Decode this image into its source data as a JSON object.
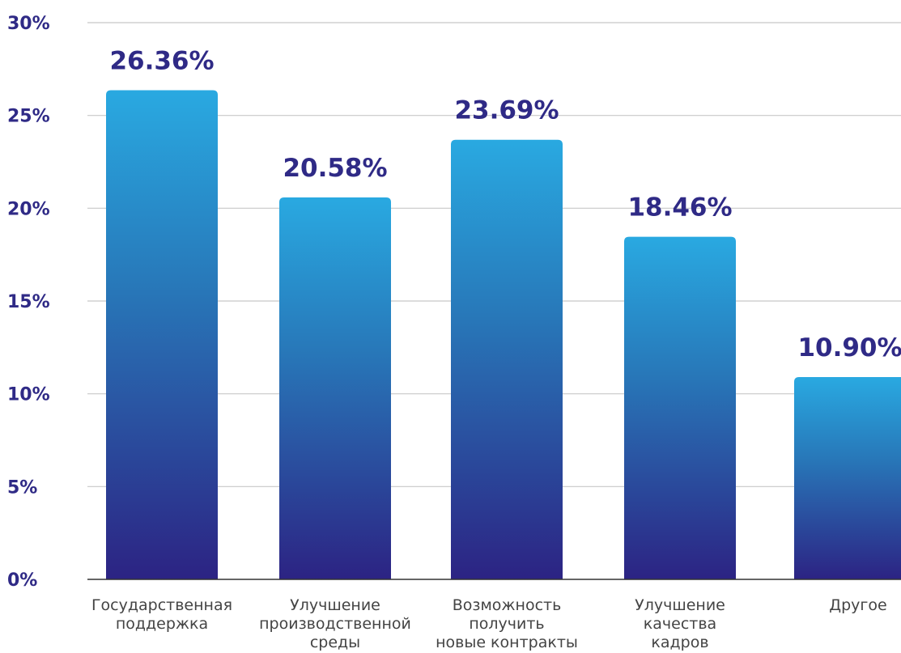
{
  "chart_data": {
    "type": "bar",
    "categories": [
      [
        "Государственная",
        "поддержка"
      ],
      [
        "Улучшение",
        "производственной",
        "среды"
      ],
      [
        "Возможность",
        "получить",
        "новые контракты"
      ],
      [
        "Улучшение",
        "качества",
        "кадров"
      ],
      [
        "Другое"
      ]
    ],
    "values": [
      26.36,
      20.58,
      23.69,
      18.46,
      10.9
    ],
    "data_labels": [
      "26.36%",
      "20.58%",
      "23.69%",
      "18.46%",
      "10.90%"
    ],
    "yticks": [
      0,
      5,
      10,
      15,
      20,
      25,
      30
    ],
    "ytick_labels": [
      "0%",
      "5%",
      "10%",
      "15%",
      "20%",
      "25%",
      "30%"
    ],
    "ylim": [
      0,
      30
    ],
    "title": "",
    "xlabel": "",
    "ylabel": "",
    "grid": true,
    "legend": "none",
    "colors": {
      "bar_top": "#29a9e1",
      "bar_mid": "#2878b9",
      "bar_bottom": "#2c2383",
      "label": "#2f2a86",
      "tick_text": "#444444",
      "grid": "#c8c8c8",
      "axis": "#333333"
    }
  }
}
